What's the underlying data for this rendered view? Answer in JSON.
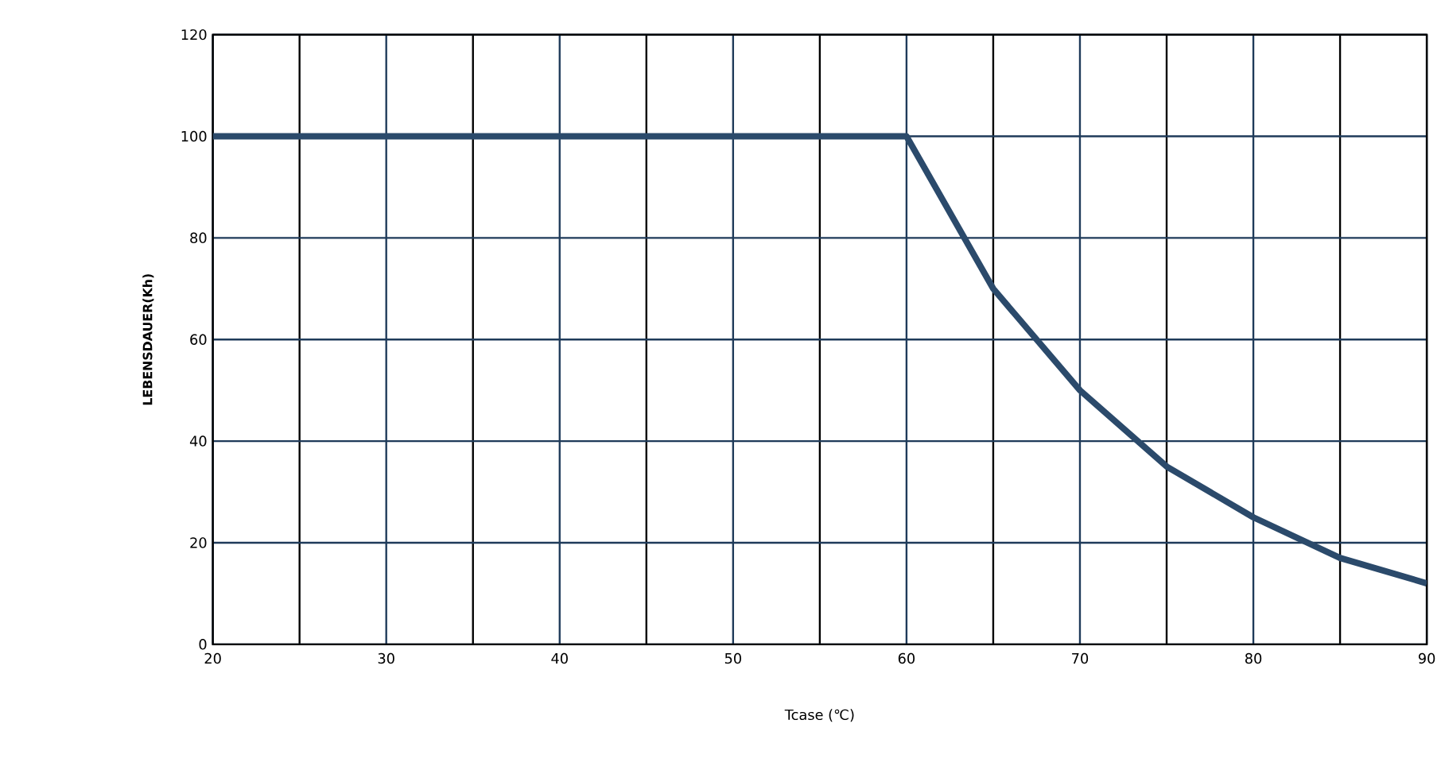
{
  "chart_data": {
    "type": "line",
    "xlabel": "Tcase (℃)",
    "ylabel": "LEBENSDAUER(Kh)",
    "x": [
      20,
      60,
      65,
      70,
      75,
      80,
      85,
      90
    ],
    "values": [
      100,
      100,
      70,
      50,
      35,
      25,
      17,
      12
    ],
    "color": "#2b4a6b",
    "line_style": "solid",
    "grid": true,
    "xlim": [
      20,
      90
    ],
    "ylim": [
      0,
      120
    ],
    "xticks": [
      20,
      30,
      40,
      50,
      60,
      70,
      80,
      90
    ],
    "yticks": [
      0,
      20,
      40,
      60,
      80,
      100,
      120
    ]
  }
}
